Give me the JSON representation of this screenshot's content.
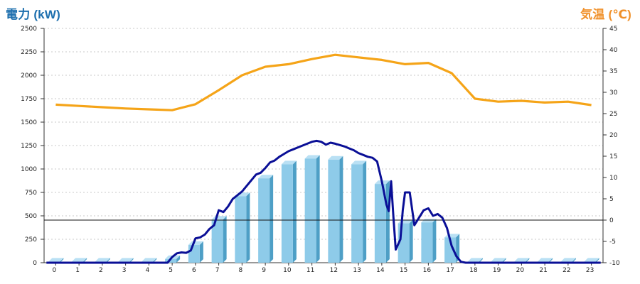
{
  "colors": {
    "power_title": "#1d6fae",
    "temp_title": "#f0912b",
    "bar_front": "#8ecbe9",
    "bar_side": "#4e9fc6",
    "bar_top": "#b9e0f4",
    "power_line": "#0a0f96",
    "temp_line": "#f5a418",
    "grid": "#c8c8c8",
    "axis": "#333333"
  },
  "chart_data": {
    "type": "bar",
    "title_left": "電力 (kW)",
    "title_right": "気温 (℃)",
    "categories": [
      "0",
      "1",
      "2",
      "3",
      "4",
      "5",
      "6",
      "7",
      "8",
      "9",
      "10",
      "11",
      "12",
      "13",
      "14",
      "15",
      "16",
      "17",
      "18",
      "19",
      "20",
      "21",
      "22",
      "23"
    ],
    "y_left": {
      "min": 0,
      "max": 2500,
      "ticks": [
        0,
        250,
        500,
        750,
        1000,
        1250,
        1500,
        1750,
        2000,
        2250,
        2500
      ]
    },
    "y_right": {
      "min": -10,
      "max": 45,
      "ticks": [
        -10,
        -5,
        0,
        5,
        10,
        15,
        20,
        25,
        30,
        35,
        40,
        45
      ]
    },
    "grid": true,
    "series_bars": {
      "axis": "left",
      "values": [
        12,
        12,
        12,
        12,
        12,
        40,
        190,
        460,
        710,
        900,
        1050,
        1110,
        1100,
        1050,
        840,
        420,
        430,
        270,
        12,
        12,
        12,
        12,
        12,
        12
      ]
    },
    "series_power_line": {
      "axis": "left",
      "points": [
        [
          -0.4,
          0
        ],
        [
          4.8,
          0
        ],
        [
          5.0,
          60
        ],
        [
          5.2,
          100
        ],
        [
          5.4,
          110
        ],
        [
          5.6,
          105
        ],
        [
          5.8,
          130
        ],
        [
          6.0,
          260
        ],
        [
          6.2,
          270
        ],
        [
          6.4,
          300
        ],
        [
          6.6,
          360
        ],
        [
          6.8,
          400
        ],
        [
          7.0,
          560
        ],
        [
          7.2,
          540
        ],
        [
          7.4,
          600
        ],
        [
          7.6,
          680
        ],
        [
          7.8,
          720
        ],
        [
          8.0,
          760
        ],
        [
          8.2,
          820
        ],
        [
          8.4,
          880
        ],
        [
          8.6,
          940
        ],
        [
          8.8,
          960
        ],
        [
          9.0,
          1010
        ],
        [
          9.2,
          1070
        ],
        [
          9.4,
          1090
        ],
        [
          9.6,
          1130
        ],
        [
          9.8,
          1160
        ],
        [
          10.0,
          1190
        ],
        [
          10.2,
          1210
        ],
        [
          10.4,
          1230
        ],
        [
          10.6,
          1250
        ],
        [
          10.8,
          1270
        ],
        [
          11.0,
          1290
        ],
        [
          11.2,
          1300
        ],
        [
          11.4,
          1290
        ],
        [
          11.6,
          1260
        ],
        [
          11.8,
          1280
        ],
        [
          12.0,
          1270
        ],
        [
          12.2,
          1255
        ],
        [
          12.4,
          1240
        ],
        [
          12.6,
          1220
        ],
        [
          12.8,
          1200
        ],
        [
          13.0,
          1170
        ],
        [
          13.2,
          1150
        ],
        [
          13.4,
          1130
        ],
        [
          13.6,
          1120
        ],
        [
          13.8,
          1080
        ],
        [
          14.0,
          870
        ],
        [
          14.2,
          620
        ],
        [
          14.3,
          550
        ],
        [
          14.4,
          870
        ],
        [
          14.5,
          480
        ],
        [
          14.6,
          140
        ],
        [
          14.8,
          250
        ],
        [
          14.9,
          560
        ],
        [
          15.0,
          750
        ],
        [
          15.2,
          750
        ],
        [
          15.4,
          400
        ],
        [
          15.6,
          480
        ],
        [
          15.8,
          560
        ],
        [
          16.0,
          580
        ],
        [
          16.2,
          500
        ],
        [
          16.4,
          520
        ],
        [
          16.6,
          480
        ],
        [
          16.8,
          370
        ],
        [
          17.0,
          180
        ],
        [
          17.2,
          70
        ],
        [
          17.4,
          10
        ],
        [
          17.6,
          0
        ],
        [
          23.4,
          0
        ]
      ]
    },
    "series_temperature": {
      "axis": "right",
      "x": [
        0,
        1,
        2,
        3,
        4,
        5,
        6,
        7,
        8,
        9,
        10,
        11,
        12,
        13,
        14,
        15,
        16,
        17,
        18,
        19,
        20,
        21,
        22,
        23
      ],
      "values": [
        27.1,
        26.8,
        26.5,
        26.2,
        26.0,
        25.8,
        27.2,
        30.5,
        34.0,
        36.0,
        36.6,
        37.8,
        38.8,
        38.2,
        37.6,
        36.6,
        36.9,
        34.5,
        28.5,
        27.8,
        28.0,
        27.6,
        27.8,
        27.0
      ]
    }
  }
}
